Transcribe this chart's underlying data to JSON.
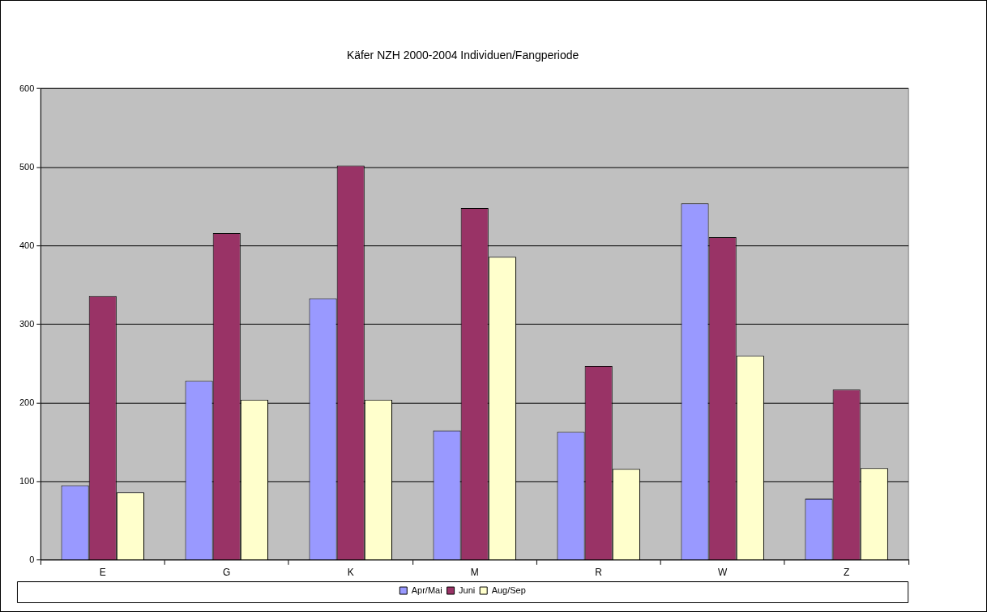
{
  "chart_data": {
    "type": "bar",
    "title": "Käfer NZH 2000-2004 Individuen/Fangperiode",
    "categories": [
      "E",
      "G",
      "K",
      "M",
      "R",
      "W",
      "Z"
    ],
    "series": [
      {
        "name": "Apr/Mai",
        "color": "#9999ff",
        "values": [
          95,
          228,
          333,
          165,
          163,
          454,
          78
        ]
      },
      {
        "name": "Juni",
        "color": "#993366",
        "values": [
          336,
          416,
          502,
          448,
          247,
          411,
          217
        ]
      },
      {
        "name": "Aug/Sep",
        "color": "#ffffcc",
        "values": [
          86,
          204,
          204,
          386,
          116,
          260,
          117
        ]
      }
    ],
    "ylim": [
      0,
      600
    ],
    "yticks": [
      0,
      100,
      200,
      300,
      400,
      500,
      600
    ],
    "grid": "y",
    "legend": "bottom"
  }
}
